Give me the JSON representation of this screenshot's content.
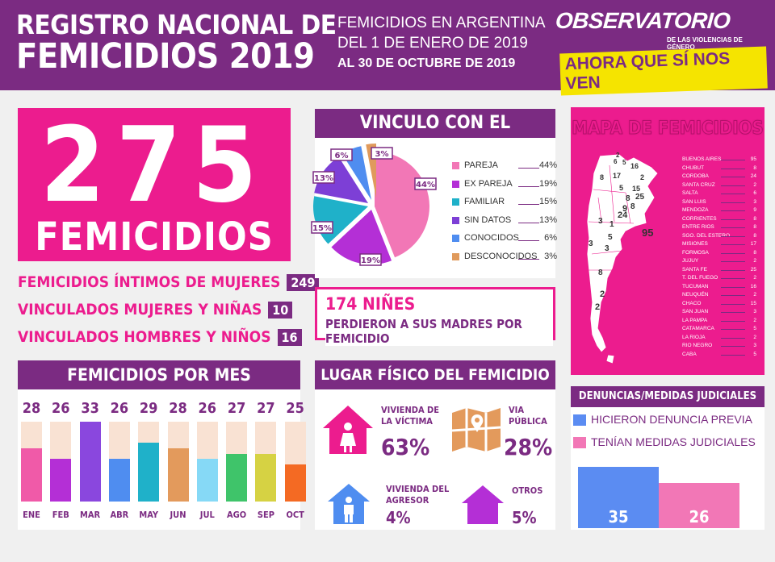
{
  "header": {
    "title_line1": "REGISTRO NACIONAL DE",
    "title_line2": "FEMICIDIOS 2019",
    "sub_line1": "FEMICIDIOS EN ARGENTINA",
    "sub_line2": "DEL 1 DE ENERO DE 2019",
    "sub_line3": "AL 30 DE OCTUBRE DE 2019",
    "logo_main": "OBSERVATORIO",
    "logo_small_1": "DE LAS VIOLENCIAS DE GÉNERO",
    "logo_slogan": "AHORA QUE SÍ NOS VEN"
  },
  "total": {
    "number": "275",
    "label": "FEMICIDIOS"
  },
  "stats": [
    {
      "label": "FEMICIDIOS ÍNTIMOS DE MUJERES",
      "value": "249"
    },
    {
      "label": "VINCULADOS MUJERES Y NIÑAS",
      "value": "10"
    },
    {
      "label": "VINCULADOS HOMBRES Y NIÑOS",
      "value": "16"
    }
  ],
  "vinculo": {
    "title": "VINCULO CON EL AGRESOR",
    "slices": [
      {
        "name": "PAREJA",
        "pct": 44,
        "label": "44%",
        "color": "#f277b6"
      },
      {
        "name": "EX PAREJA",
        "pct": 19,
        "label": "19%",
        "color": "#b42fd6"
      },
      {
        "name": "FAMILIAR",
        "pct": 15,
        "label": "15%",
        "color": "#1fb1c9"
      },
      {
        "name": "SIN DATOS",
        "pct": 13,
        "label": "13%",
        "color": "#7d3fd6"
      },
      {
        "name": "CONOCIDOS",
        "pct": 6,
        "label": "6%",
        "color": "#4f8df0"
      },
      {
        "name": "DESCONOCIDOS",
        "pct": 3,
        "label": "3%",
        "color": "#e09a5c"
      }
    ]
  },
  "ninos": {
    "line1": "174 NIÑES",
    "line2": "PERDIERON A SUS MADRES POR FEMICIDIO"
  },
  "mapa": {
    "title": "MAPA DE FEMICIDIOS",
    "provincias": [
      {
        "name": "BUENOS AIRES",
        "value": "95"
      },
      {
        "name": "CHUBUT",
        "value": "8"
      },
      {
        "name": "CORDOBA",
        "value": "24"
      },
      {
        "name": "SANTA CRUZ",
        "value": "2"
      },
      {
        "name": "SALTA",
        "value": "6"
      },
      {
        "name": "SAN LUIS",
        "value": "3"
      },
      {
        "name": "MENDOZA",
        "value": "9"
      },
      {
        "name": "CORRIENTES",
        "value": "8"
      },
      {
        "name": "ENTRE RIOS",
        "value": "8"
      },
      {
        "name": "SGO. DEL ESTERO",
        "value": "8"
      },
      {
        "name": "MISIONES",
        "value": "17"
      },
      {
        "name": "FORMOSA",
        "value": "8"
      },
      {
        "name": "JUJUY",
        "value": "2"
      },
      {
        "name": "SANTA FE",
        "value": "25"
      },
      {
        "name": "T. DEL FUEGO",
        "value": "2"
      },
      {
        "name": "TUCUMAN",
        "value": "16"
      },
      {
        "name": "NEUQUÉN",
        "value": "2"
      },
      {
        "name": "CHACO",
        "value": "15"
      },
      {
        "name": "SAN JUAN",
        "value": "3"
      },
      {
        "name": "LA PAMPA",
        "value": "2"
      },
      {
        "name": "CATAMARCA",
        "value": "5"
      },
      {
        "name": "LA RIOJA",
        "value": "2"
      },
      {
        "name": "RIO NEGRO",
        "value": "3"
      },
      {
        "name": "CABA",
        "value": "5"
      }
    ],
    "map_labels": [
      "2",
      "6",
      "5",
      "16",
      "8",
      "17",
      "2",
      "15",
      "5",
      "8",
      "25",
      "8",
      "9",
      "3",
      "24",
      "1",
      "5",
      "95",
      "3",
      "3",
      "8",
      "2",
      "2"
    ]
  },
  "por_mes": {
    "title": "FEMICIDIOS POR MES",
    "max": 33,
    "months": [
      {
        "name": "ENE",
        "value": 28,
        "label": "28",
        "color": "#f05aa8"
      },
      {
        "name": "FEB",
        "value": 26,
        "label": "26",
        "color": "#b42fd6"
      },
      {
        "name": "MAR",
        "value": 33,
        "label": "33",
        "color": "#8a47de"
      },
      {
        "name": "ABR",
        "value": 26,
        "label": "26",
        "color": "#4f8df0"
      },
      {
        "name": "MAY",
        "value": 29,
        "label": "29",
        "color": "#1fb1c9"
      },
      {
        "name": "JUN",
        "value": 28,
        "label": "28",
        "color": "#e39a5c"
      },
      {
        "name": "JUL",
        "value": 26,
        "label": "26",
        "color": "#86d9f6"
      },
      {
        "name": "AGO",
        "value": 27,
        "label": "27",
        "color": "#3fc46a"
      },
      {
        "name": "SEP",
        "value": 27,
        "label": "27",
        "color": "#d6d243"
      },
      {
        "name": "OCT",
        "value": 25,
        "label": "25",
        "color": "#f46a23"
      }
    ]
  },
  "lugar": {
    "title": "LUGAR FÍSICO DEL FEMICIDIO",
    "items": [
      {
        "label_1": "VIVIENDA DE",
        "label_2": "LA VÍCTIMA",
        "pct": "63%"
      },
      {
        "label_1": "VIA",
        "label_2": "PÚBLICA",
        "pct": "28%"
      },
      {
        "label_1": "VIVIENDA DEL",
        "label_2": "AGRESOR",
        "pct": "4%"
      },
      {
        "label_1": "OTROS",
        "label_2": "",
        "pct": "5%"
      }
    ]
  },
  "denuncias": {
    "title": "DENUNCIAS/MEDIDAS JUDICIALES",
    "items": [
      {
        "label": "HICIERON DENUNCIA PREVIA",
        "value": 35,
        "text": "35",
        "color": "#5b8cf2"
      },
      {
        "label": "TENÍAN MEDIDAS JUDICIALES",
        "value": 26,
        "text": "26",
        "color": "#f277b6"
      }
    ]
  }
}
